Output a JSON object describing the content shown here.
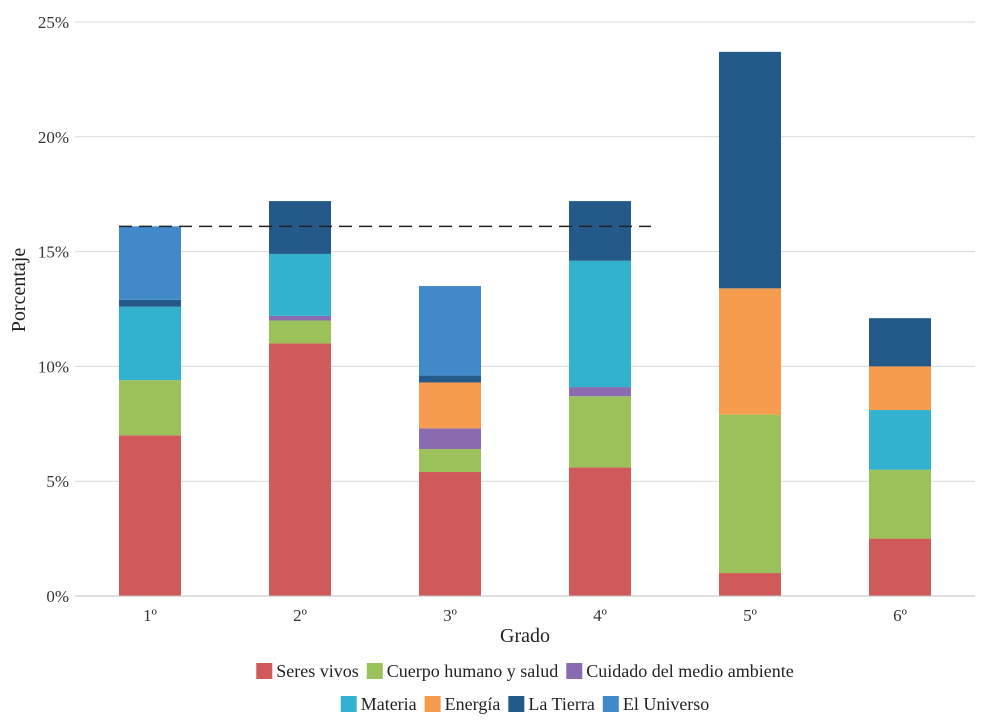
{
  "chart_data": {
    "type": "bar",
    "stacked": true,
    "categories": [
      "1º",
      "2º",
      "3º",
      "4º",
      "5º",
      "6º"
    ],
    "xlabel": "Grado",
    "ylabel": "Porcentaje",
    "ylim": [
      0,
      25
    ],
    "yticks": [
      0,
      5,
      10,
      15,
      20,
      25
    ],
    "ytick_labels": [
      "0%",
      "5%",
      "10%",
      "15%",
      "20%",
      "25%"
    ],
    "grid": "horizontal",
    "legend_position": "bottom",
    "reference_line": {
      "style": "dashed",
      "value": 16.1,
      "from_category": "1º",
      "to_category": "4º"
    },
    "series": [
      {
        "name": "Seres vivos",
        "color": "#d05a5a",
        "values": [
          7.0,
          11.0,
          5.4,
          5.6,
          1.0,
          2.5
        ]
      },
      {
        "name": "Cuerpo humano y salud",
        "color": "#9bc25a",
        "values": [
          2.4,
          1.0,
          1.0,
          3.1,
          6.9,
          3.0
        ]
      },
      {
        "name": "Cuidado del medio ambiente",
        "color": "#8a6bb0",
        "values": [
          0,
          0.2,
          0.9,
          0.4,
          0,
          0
        ]
      },
      {
        "name": "Materia",
        "color": "#33b2cf",
        "values": [
          3.2,
          2.7,
          0,
          5.5,
          0,
          2.6
        ]
      },
      {
        "name": "Energía",
        "color": "#f69c4e",
        "values": [
          0,
          0,
          2.0,
          0,
          5.5,
          1.9
        ]
      },
      {
        "name": "La Tierra",
        "color": "#245a8a",
        "values": [
          0.3,
          2.3,
          0.3,
          2.6,
          10.3,
          2.1
        ]
      },
      {
        "name": "El Universo",
        "color": "#4189c8",
        "values": [
          3.2,
          0,
          3.9,
          0,
          0,
          0
        ]
      }
    ]
  }
}
